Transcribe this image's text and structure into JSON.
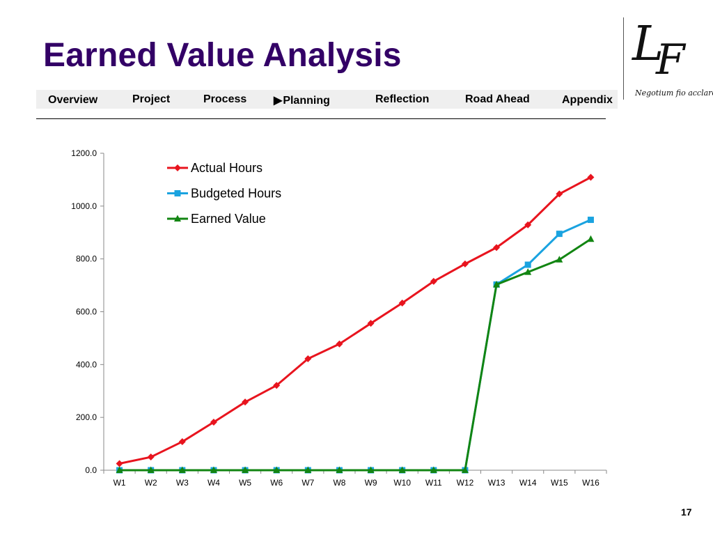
{
  "slide": {
    "title": "Earned Value Analysis",
    "page_number": "17",
    "colors": {
      "title": "#330066",
      "nav_bg": "#efefef"
    }
  },
  "nav": {
    "items": [
      {
        "label": "Overview"
      },
      {
        "label": "Project"
      },
      {
        "label": "Process"
      },
      {
        "label": "Planning",
        "marker": "▶",
        "current": true
      },
      {
        "label": "Reflection"
      },
      {
        "label": "Road Ahead"
      },
      {
        "label": "Appendix"
      }
    ]
  },
  "logo": {
    "letters": "LF",
    "motto": "Negotium fio acclaro"
  },
  "chart_data": {
    "type": "line",
    "title": "",
    "xlabel": "",
    "ylabel": "",
    "categories": [
      "W1",
      "W2",
      "W3",
      "W4",
      "W5",
      "W6",
      "W7",
      "W8",
      "W9",
      "W10",
      "W11",
      "W12",
      "W13",
      "W14",
      "W15",
      "W16"
    ],
    "ylim": [
      0,
      1200
    ],
    "yticks": [
      "0.0",
      "200.0",
      "400.0",
      "600.0",
      "800.0",
      "1000.0",
      "1200.0"
    ],
    "grid": false,
    "legend_position": "top-left",
    "series": [
      {
        "name": "Actual Hours",
        "color": "#e8141e",
        "marker": "diamond",
        "values": [
          25,
          50,
          108,
          182,
          258,
          321,
          422,
          478,
          556,
          633,
          715,
          781,
          843,
          929,
          1046,
          1109
        ]
      },
      {
        "name": "Budgeted Hours",
        "color": "#1aa3e0",
        "marker": "square",
        "values": [
          0,
          0,
          0,
          0,
          0,
          0,
          0,
          0,
          0,
          0,
          0,
          0,
          703,
          778,
          895,
          948
        ]
      },
      {
        "name": "Earned Value",
        "color": "#128512",
        "marker": "triangle",
        "values": [
          0,
          0,
          0,
          0,
          0,
          0,
          0,
          0,
          0,
          0,
          0,
          0,
          703,
          750,
          797,
          875
        ]
      }
    ]
  }
}
